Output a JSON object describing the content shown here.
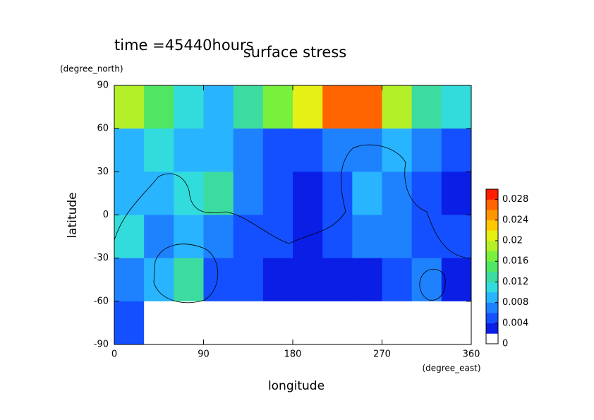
{
  "chart_data": {
    "type": "contour",
    "title": "surface stress",
    "subtitle": "time =45440hours",
    "x_label": "longitude",
    "x_unit": "(degree_east)",
    "y_label": "latitude",
    "y_unit": "(degree_north)",
    "x": [
      15,
      45,
      75,
      105,
      135,
      165,
      195,
      225,
      255,
      285,
      315,
      345
    ],
    "y": [
      75,
      45,
      15,
      -15,
      -45,
      -75
    ],
    "cell": [
      30,
      30
    ],
    "z": [
      [
        0.018,
        0.014,
        0.01,
        0.008,
        0.012,
        0.016,
        0.02,
        0.026,
        0.026,
        0.018,
        0.012,
        0.01
      ],
      [
        0.008,
        0.01,
        0.008,
        0.008,
        0.006,
        0.004,
        0.004,
        0.006,
        0.006,
        0.008,
        0.006,
        0.004
      ],
      [
        0.008,
        0.008,
        0.01,
        0.012,
        0.006,
        0.004,
        0.002,
        0.004,
        0.008,
        0.006,
        0.004,
        0.002
      ],
      [
        0.01,
        0.006,
        0.008,
        0.006,
        0.004,
        0.004,
        0.002,
        0.004,
        0.006,
        0.006,
        0.004,
        0.004
      ],
      [
        0.006,
        0.008,
        0.012,
        0.004,
        0.004,
        0.002,
        0.002,
        0.002,
        0.002,
        0.004,
        0.006,
        0.002
      ],
      [
        0.004,
        0,
        0,
        0,
        0,
        0,
        0,
        0,
        0,
        0,
        0,
        0
      ]
    ],
    "xlim": [
      0,
      360
    ],
    "xticks": [
      0,
      90,
      180,
      270,
      360
    ],
    "ylim": [
      -90,
      90
    ],
    "yticks": [
      90,
      60,
      30,
      0,
      -30,
      -60,
      -90
    ],
    "clim": [
      0,
      0.03
    ],
    "cticks": [
      0,
      0.004,
      0.008,
      0.012,
      0.016,
      0.02,
      0.024,
      0.028
    ],
    "level_step": 0.002,
    "colormap": [
      "#ffffff",
      "#0a1ee6",
      "#1450ff",
      "#1e82ff",
      "#28b4ff",
      "#32dcdc",
      "#3cdca0",
      "#50e664",
      "#78f03c",
      "#b4f028",
      "#e6f014",
      "#ffc800",
      "#ff9600",
      "#ff6400",
      "#ff1e00"
    ]
  }
}
